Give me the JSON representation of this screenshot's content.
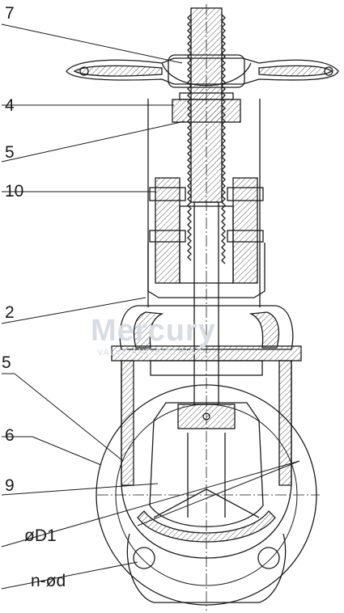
{
  "callouts": {
    "label_7": "7",
    "label_4": "4",
    "label_5_top": "5",
    "label_10": "10",
    "label_2": "2",
    "label_5_bottom": "5",
    "label_6": "6",
    "label_9": "9",
    "label_od1": "øD1",
    "label_nod": "n-ød"
  },
  "watermark": {
    "brand": "Mercury",
    "tagline": "VALVE AND FITTINGS"
  },
  "colors": {
    "line": "#1a1a1a",
    "hatch": "#555555",
    "watermark": "#d8dde3"
  }
}
